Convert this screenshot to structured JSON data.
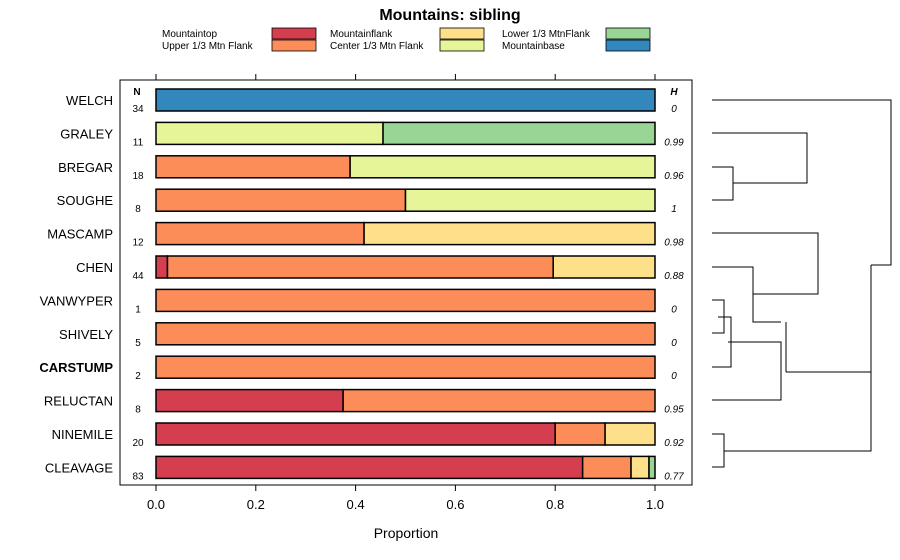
{
  "chart_data": {
    "type": "bar",
    "orientation": "horizontal",
    "stacked": true,
    "title": "Mountains: sibling",
    "xlabel": "Proportion",
    "ylabel": "",
    "xlim": [
      0,
      1
    ],
    "xticks": [
      "0.0",
      "0.2",
      "0.4",
      "0.6",
      "0.8",
      "1.0"
    ],
    "n_header": "N",
    "h_header": "H",
    "legend": [
      {
        "name": "Mountaintop",
        "color": "#d53e4f"
      },
      {
        "name": "Upper 1/3 Mtn Flank",
        "color": "#fc8d59"
      },
      {
        "name": "Mountainflank",
        "color": "#fee08b"
      },
      {
        "name": "Center 1/3 Mtn Flank",
        "color": "#e6f598"
      },
      {
        "name": "Lower 1/3 MtnFlank",
        "color": "#99d594"
      },
      {
        "name": "Mountainbase",
        "color": "#3288bd"
      }
    ],
    "categories": [
      "WELCH",
      "GRALEY",
      "BREGAR",
      "SOUGHE",
      "MASCAMP",
      "CHEN",
      "VANWYPER",
      "SHIVELY",
      "CARSTUMP",
      "RELUCTAN",
      "NINEMILE",
      "CLEAVAGE"
    ],
    "highlighted_category": "CARSTUMP",
    "n": [
      "34",
      "11",
      "18",
      "8",
      "12",
      "44",
      "1",
      "5",
      "2",
      "8",
      "20",
      "83"
    ],
    "h": [
      "0",
      "0.99",
      "0.96",
      "1",
      "0.98",
      "0.88",
      "0",
      "0",
      "0",
      "0.95",
      "0.92",
      "0.77"
    ],
    "series": [
      {
        "name": "Mountaintop",
        "values": [
          0,
          0,
          0,
          0,
          0,
          0.023,
          0,
          0,
          0,
          0.375,
          0.8,
          0.855
        ]
      },
      {
        "name": "Upper 1/3 Mtn Flank",
        "values": [
          0,
          0,
          0.389,
          0.5,
          0.417,
          0.773,
          1,
          1,
          1,
          0.625,
          0.1,
          0.097
        ]
      },
      {
        "name": "Mountainflank",
        "values": [
          0,
          0,
          0,
          0,
          0.583,
          0.204,
          0,
          0,
          0,
          0,
          0.1,
          0.036
        ]
      },
      {
        "name": "Center 1/3 Mtn Flank",
        "values": [
          0,
          0.455,
          0.611,
          0.5,
          0,
          0,
          0,
          0,
          0,
          0,
          0,
          0
        ]
      },
      {
        "name": "Lower 1/3 MtnFlank",
        "values": [
          0,
          0.545,
          0,
          0,
          0,
          0,
          0,
          0,
          0,
          0,
          0,
          0.012
        ]
      },
      {
        "name": "Mountainbase",
        "values": [
          1,
          0,
          0,
          0,
          0,
          0,
          0,
          0,
          0,
          0,
          0,
          0
        ]
      }
    ],
    "dendrogram": {
      "description_merges": [
        [
          "VANWYPER",
          "SHIVELY"
        ],
        [
          "VANWYPER+SHIVELY",
          "CARSTUMP"
        ],
        [
          "BREGAR",
          "SOUGHE"
        ],
        [
          "NINEMILE",
          "CLEAVAGE"
        ],
        [
          "VANWYPER+SHIVELY+CARSTUMP",
          "RELUCTAN"
        ],
        [
          "CHEN",
          "VANWYPER+SHIVELY+CARSTUMP+RELUCTAN"
        ],
        [
          "GRALEY",
          "BREGAR+SOUGHE"
        ],
        [
          "MASCAMP",
          "CHEN+VANWYPER+SHIVELY+CARSTUMP+RELUCTAN"
        ],
        [
          "MASCAMP+CHEN+...",
          "NINEMILE+CLEAVAGE"
        ],
        [
          "WELCH",
          "GRALEY+BREGAR+SOUGHE"
        ],
        [
          "WELCH+GRALEY+BREGAR+SOUGHE",
          "MASCAMP+...+CLEAVAGE"
        ]
      ]
    }
  }
}
